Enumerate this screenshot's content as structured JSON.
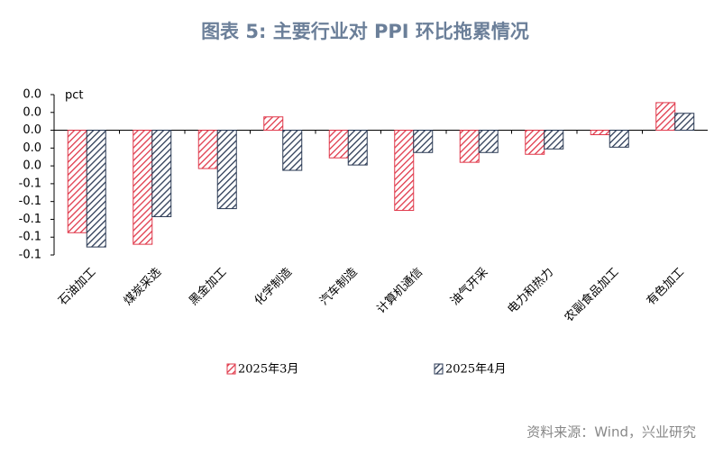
{
  "chart_data": {
    "type": "bar",
    "title": "图表 5:   主要行业对 PPI 环比拖累情况",
    "y_label": "pct",
    "source": "资料来源：Wind，兴业研究",
    "categories": [
      "石油加工",
      "煤炭采选",
      "黑金加工",
      "化学制造",
      "汽车制造",
      "计算机通信",
      "油气开采",
      "电力和热力",
      "农副食品加工",
      "有色加工"
    ],
    "series": [
      {
        "name": "2025年3月",
        "color": "#e0384a",
        "values": [
          -0.115,
          -0.128,
          -0.043,
          0.015,
          -0.031,
          -0.09,
          -0.036,
          -0.027,
          -0.005,
          0.031
        ]
      },
      {
        "name": "2025年4月",
        "color": "#2b3a55",
        "values": [
          -0.131,
          -0.097,
          -0.088,
          -0.045,
          -0.039,
          -0.025,
          -0.025,
          -0.021,
          -0.019,
          0.019
        ]
      }
    ],
    "ylim": [
      -0.14,
      0.04
    ],
    "yticks": [
      {
        "value": 0.04,
        "label": "0.0"
      },
      {
        "value": 0.02,
        "label": "0.0"
      },
      {
        "value": 0,
        "label": "0.0"
      },
      {
        "value": -0.02,
        "label": "0.0"
      },
      {
        "value": -0.04,
        "label": "0.0"
      },
      {
        "value": -0.06,
        "label": "-0.1"
      },
      {
        "value": -0.08,
        "label": "-0.1"
      },
      {
        "value": -0.1,
        "label": "-0.1"
      },
      {
        "value": -0.12,
        "label": "-0.1"
      },
      {
        "value": -0.14,
        "label": "-0.1"
      }
    ]
  }
}
